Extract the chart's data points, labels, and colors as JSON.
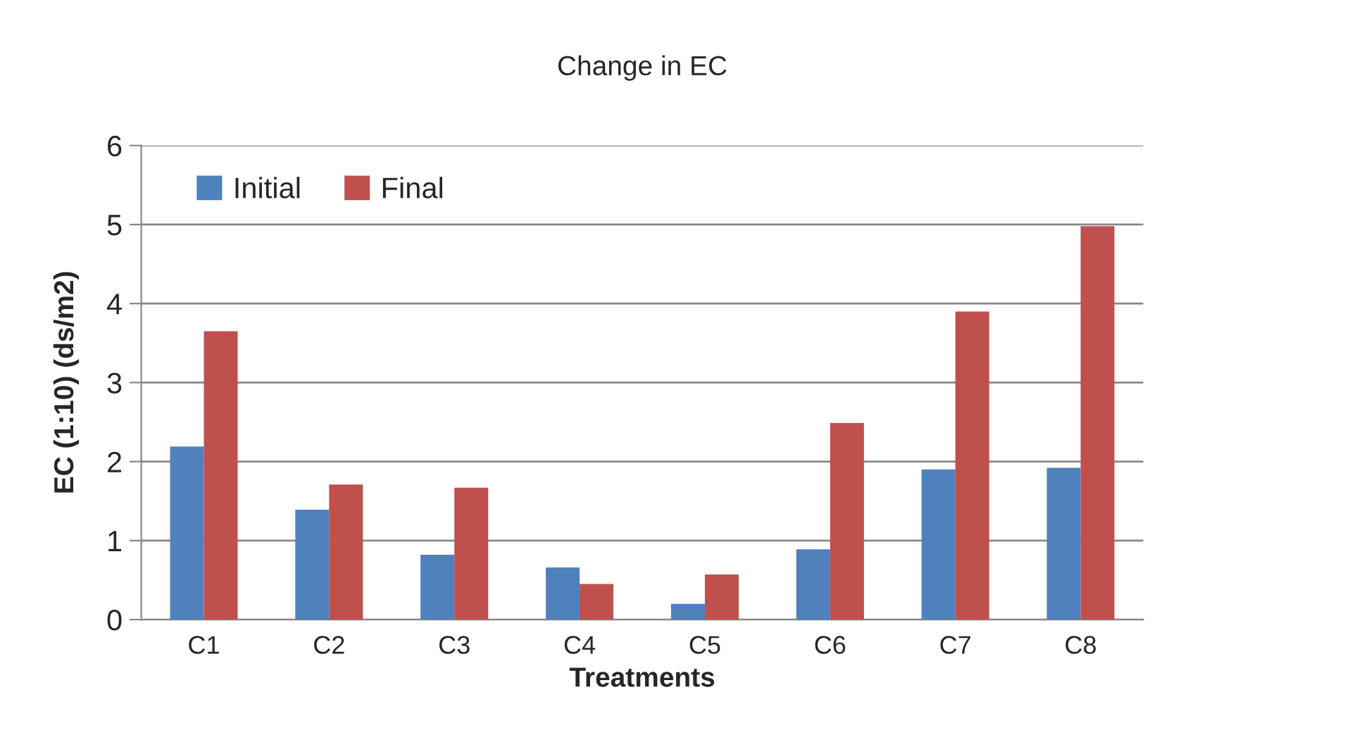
{
  "chart_data": {
    "type": "bar",
    "title": "Change in EC",
    "xlabel": "Treatments",
    "ylabel": "EC (1:10) (ds/m2)",
    "categories": [
      "C1",
      "C2",
      "C3",
      "C4",
      "C5",
      "C6",
      "C7",
      "C8"
    ],
    "series": [
      {
        "name": "Initial",
        "color": "#4f81bd",
        "values": [
          2.19,
          1.39,
          0.82,
          0.66,
          0.2,
          0.89,
          1.9,
          1.92
        ]
      },
      {
        "name": "Final",
        "color": "#c0504d",
        "values": [
          3.65,
          1.71,
          1.67,
          0.45,
          0.57,
          2.49,
          3.9,
          4.98
        ]
      }
    ],
    "ylim": [
      0,
      6
    ],
    "yticks": [
      0,
      1,
      2,
      3,
      4,
      5,
      6
    ],
    "grid": "y",
    "legend": "top left"
  }
}
